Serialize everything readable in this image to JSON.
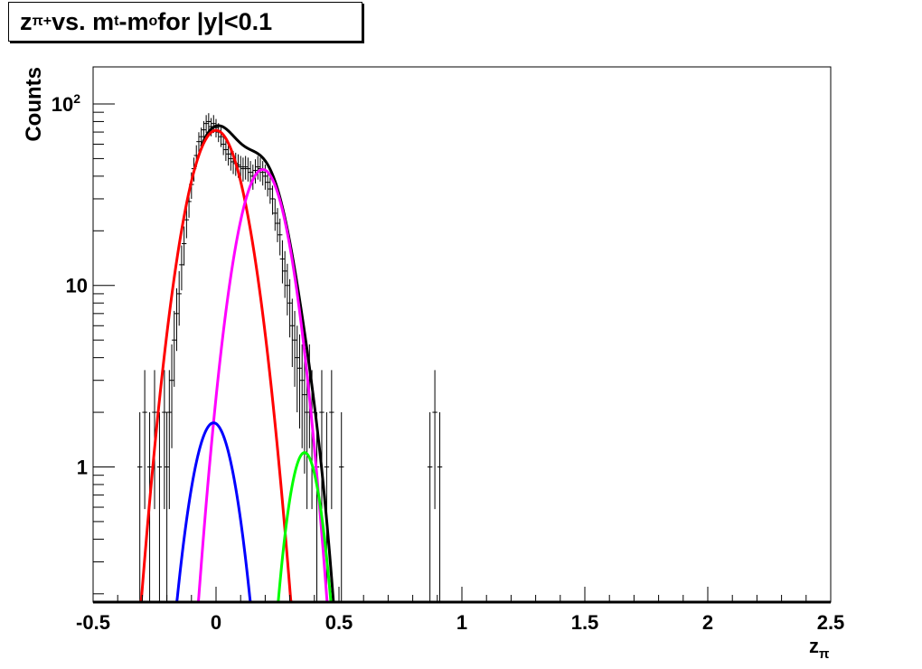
{
  "title": {
    "z": "z",
    "z_sub": "π+",
    "vs": " vs. m",
    "mt_sub": "t",
    "dash": "-m",
    "mo_sub": "o",
    "tail": " for |y|<0.1"
  },
  "colors": {
    "data": "#000000",
    "total_fit": "#000000",
    "fit_red": "#ff0000",
    "fit_magenta": "#ff00ff",
    "fit_blue": "#0000ff",
    "fit_green": "#00ff00"
  },
  "chart_data": {
    "type": "scatter",
    "xlabel": "z",
    "xlabel_sub": "π",
    "ylabel": "Counts",
    "xlim": [
      -0.5,
      2.5
    ],
    "ylim": [
      0.18,
      160
    ],
    "yscale": "log",
    "xticks": [
      "-0.5",
      "0",
      "0.5",
      "1",
      "1.5",
      "2",
      "2.5"
    ],
    "xtick_values": [
      -0.5,
      0,
      0.5,
      1,
      1.5,
      2,
      2.5
    ],
    "yticks": [
      "1",
      "10"
    ],
    "ytick_values": [
      1,
      10
    ],
    "ytick_top_base": "10",
    "ytick_top_exp": "2",
    "ytick_top_value": 100,
    "grid": false,
    "histogram": {
      "x": [
        -0.31,
        -0.29,
        -0.27,
        -0.25,
        -0.23,
        -0.21,
        -0.2,
        -0.19,
        -0.18,
        -0.17,
        -0.16,
        -0.15,
        -0.14,
        -0.13,
        -0.12,
        -0.11,
        -0.1,
        -0.09,
        -0.08,
        -0.07,
        -0.06,
        -0.05,
        -0.04,
        -0.03,
        -0.02,
        -0.01,
        0.0,
        0.01,
        0.02,
        0.03,
        0.04,
        0.05,
        0.06,
        0.07,
        0.08,
        0.09,
        0.1,
        0.11,
        0.12,
        0.13,
        0.14,
        0.15,
        0.16,
        0.17,
        0.18,
        0.19,
        0.2,
        0.21,
        0.22,
        0.23,
        0.24,
        0.25,
        0.26,
        0.27,
        0.28,
        0.29,
        0.3,
        0.31,
        0.32,
        0.33,
        0.34,
        0.35,
        0.36,
        0.37,
        0.38,
        0.39,
        0.41,
        0.43,
        0.45,
        0.47,
        0.51,
        0.87,
        0.89,
        0.91
      ],
      "y": [
        1,
        2,
        1,
        2,
        1,
        2,
        1,
        2,
        3,
        5,
        7,
        9,
        13,
        17,
        23,
        29,
        36,
        44,
        52,
        62,
        66,
        72,
        78,
        80,
        75,
        78,
        74,
        70,
        66,
        60,
        56,
        53,
        50,
        48,
        47,
        46,
        45,
        44,
        45,
        44,
        42,
        40,
        43,
        45,
        44,
        42,
        40,
        37,
        34,
        30,
        25,
        22,
        19,
        14,
        12,
        10,
        8,
        6,
        5,
        4,
        3.5,
        3,
        2.5,
        2,
        3,
        2,
        1,
        2,
        1,
        2,
        1,
        1,
        2,
        1
      ]
    },
    "series": [
      {
        "color": "#ff0000",
        "amplitude": 71.5,
        "mean": 0.0,
        "sigma": 0.088,
        "range": [
          -0.33,
          0.33
        ]
      },
      {
        "color": "#ff00ff",
        "amplitude": 43.5,
        "mean": 0.19,
        "sigma": 0.079,
        "range": [
          -0.1,
          0.5
        ]
      },
      {
        "color": "#0000ff",
        "amplitude": 1.75,
        "mean": -0.01,
        "sigma": 0.07,
        "range": [
          -0.33,
          0.4
        ]
      },
      {
        "color": "#00ff00",
        "amplitude": 1.2,
        "mean": 0.36,
        "sigma": 0.055,
        "range": [
          0.04,
          0.68
        ]
      }
    ],
    "total_fit": {
      "color": "#000000",
      "range": [
        -0.06,
        0.5
      ]
    }
  }
}
